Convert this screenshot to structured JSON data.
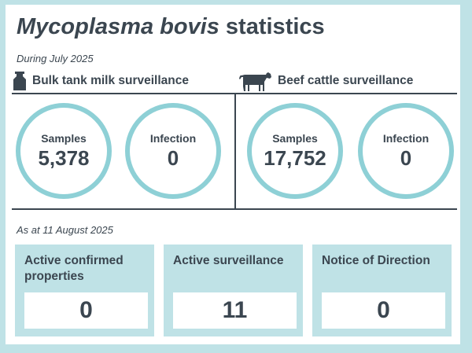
{
  "title": {
    "italic": "Mycoplasma bovis",
    "rest": " statistics"
  },
  "period_label": "During July 2025",
  "bulk_tank": {
    "heading": "Bulk tank milk surveillance",
    "samples_label": "Samples",
    "samples_value": "5,378",
    "infection_label": "Infection",
    "infection_value": "0"
  },
  "beef_cattle": {
    "heading": "Beef cattle surveillance",
    "samples_label": "Samples",
    "samples_value": "17,752",
    "infection_label": "Infection",
    "infection_value": "0"
  },
  "as_at_label": "As at 11 August 2025",
  "status_boxes": [
    {
      "label": "Active confirmed properties",
      "value": "0"
    },
    {
      "label": "Active surveillance",
      "value": "11"
    },
    {
      "label": "Notice of Direction",
      "value": "0"
    }
  ],
  "icons": {
    "milk": "milk-can-icon",
    "beef": "cow-icon"
  },
  "colors": {
    "background": "#bfe2e6",
    "text": "#3b4650",
    "ring": "#8ed0d6"
  }
}
